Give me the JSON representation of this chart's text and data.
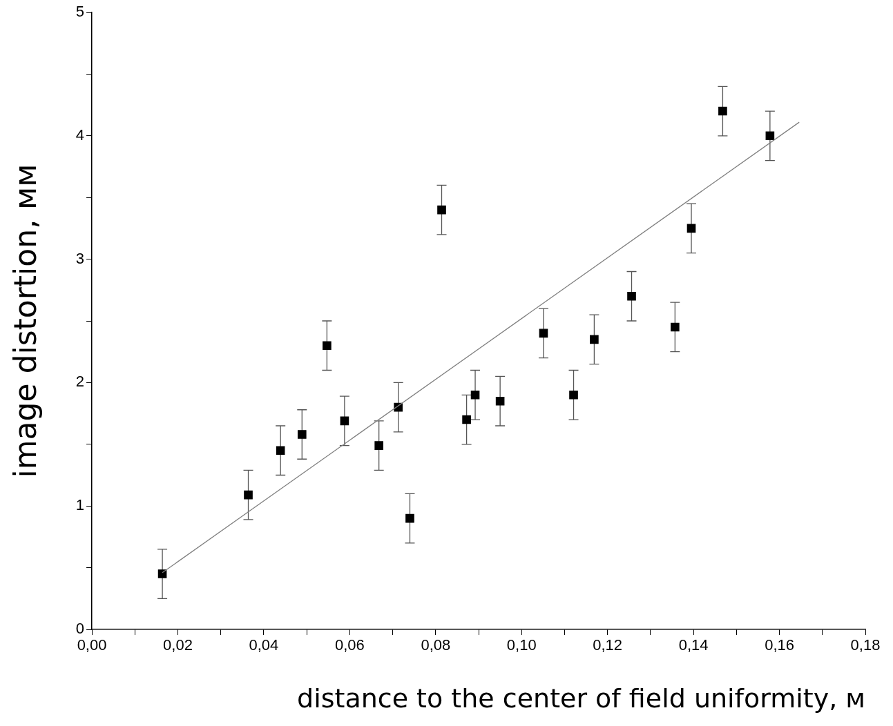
{
  "chart_data": {
    "type": "scatter",
    "xlabel": "distance to the center of field uniformity, м",
    "ylabel": "image distortion, мм",
    "series": [
      {
        "type": "scatter",
        "color": "#000000",
        "marker": "square",
        "x": [
          0.0164,
          0.0364,
          0.0439,
          0.0489,
          0.0547,
          0.0588,
          0.0668,
          0.0713,
          0.074,
          0.0814,
          0.0872,
          0.0892,
          0.095,
          0.1051,
          0.1121,
          0.1169,
          0.1256,
          0.1357,
          0.1395,
          0.1468,
          0.1578
        ],
        "values": [
          0.45,
          1.09,
          1.45,
          1.58,
          2.3,
          1.69,
          1.49,
          1.8,
          0.9,
          3.4,
          1.7,
          1.9,
          1.85,
          2.4,
          1.9,
          2.35,
          2.7,
          2.45,
          3.25,
          4.2,
          4.0
        ],
        "errors": [
          0.2,
          0.2,
          0.2,
          0.2,
          0.2,
          0.2,
          0.2,
          0.2,
          0.2,
          0.2,
          0.2,
          0.2,
          0.2,
          0.2,
          0.2,
          0.2,
          0.2,
          0.2,
          0.2,
          0.2,
          0.2
        ]
      },
      {
        "type": "line",
        "color": "#808080",
        "marker": "none",
        "line_style": "solid",
        "x": [
          0.0164,
          0.1646
        ],
        "values": [
          0.46,
          4.11
        ]
      }
    ],
    "xlim": [
      0,
      0.18
    ],
    "xticks": [
      {
        "value": 0,
        "label": "0,00"
      },
      {
        "value": 0.01,
        "label": null
      },
      {
        "value": 0.02,
        "label": "0,02"
      },
      {
        "value": 0.03,
        "label": null
      },
      {
        "value": 0.04,
        "label": "0,04"
      },
      {
        "value": 0.05,
        "label": null
      },
      {
        "value": 0.06,
        "label": "0,06"
      },
      {
        "value": 0.07,
        "label": null
      },
      {
        "value": 0.08,
        "label": "0,08"
      },
      {
        "value": 0.09,
        "label": null
      },
      {
        "value": 0.1,
        "label": "0,10"
      },
      {
        "value": 0.11,
        "label": null
      },
      {
        "value": 0.12,
        "label": "0,12"
      },
      {
        "value": 0.13,
        "label": null
      },
      {
        "value": 0.14,
        "label": "0,14"
      },
      {
        "value": 0.15,
        "label": null
      },
      {
        "value": 0.16,
        "label": "0,16"
      },
      {
        "value": 0.17,
        "label": null
      },
      {
        "value": 0.18,
        "label": "0,18"
      }
    ],
    "ylim": [
      0,
      5
    ],
    "yticks": [
      0,
      {
        "value": 0.5,
        "label": null
      },
      1,
      {
        "value": 1.5,
        "label": null
      },
      2,
      {
        "value": 2.5,
        "label": null
      },
      3,
      {
        "value": 3.5,
        "label": null
      },
      4,
      {
        "value": 4.5,
        "label": null
      },
      5
    ],
    "grid": false,
    "legend": false
  }
}
